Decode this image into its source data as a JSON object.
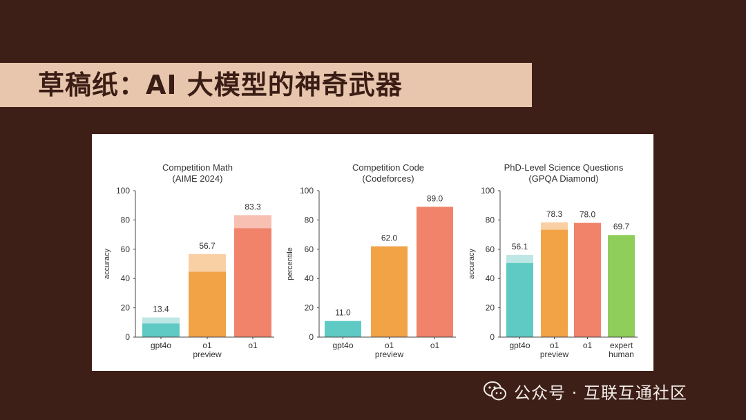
{
  "slide": {
    "title": "草稿纸：AI 大模型的神奇武器"
  },
  "watermark": {
    "icon": "wechat-icon",
    "text": "公众号 · 互联互通社区"
  },
  "colors": {
    "background": "#3d1f17",
    "title_band": "#e8c6ae"
  },
  "chart_data": [
    {
      "type": "bar",
      "title": "Competition Math\n(AIME 2024)",
      "ylabel": "accuracy",
      "ylim": [
        0,
        100
      ],
      "yticks": [
        0,
        20,
        40,
        60,
        80,
        100
      ],
      "categories": [
        "gpt4o",
        "o1\npreview",
        "o1"
      ],
      "values": [
        13.4,
        56.7,
        83.3
      ],
      "base_values": [
        9.3,
        44.6,
        74.4
      ],
      "value_labels": [
        "13.4",
        "56.7",
        "83.3"
      ],
      "colors": [
        "#5fcac3",
        "#f2a346",
        "#f1836b"
      ],
      "highlight_colors": [
        "#bde7e4",
        "#f8d0a3",
        "#f7c0b3"
      ]
    },
    {
      "type": "bar",
      "title": "Competition Code\n(Codeforces)",
      "ylabel": "percentile",
      "ylim": [
        0,
        100
      ],
      "yticks": [
        0,
        20,
        40,
        60,
        80,
        100
      ],
      "categories": [
        "gpt4o",
        "o1\npreview",
        "o1"
      ],
      "values": [
        11.0,
        62.0,
        89.0
      ],
      "base_values": [
        11.0,
        62.0,
        89.0
      ],
      "value_labels": [
        "11.0",
        "62.0",
        "89.0"
      ],
      "colors": [
        "#5fcac3",
        "#f2a346",
        "#f1836b"
      ],
      "highlight_colors": [
        "#bde7e4",
        "#f8d0a3",
        "#f7c0b3"
      ]
    },
    {
      "type": "bar",
      "title": "PhD-Level Science Questions\n(GPQA Diamond)",
      "ylabel": "accuracy",
      "ylim": [
        0,
        100
      ],
      "yticks": [
        0,
        20,
        40,
        60,
        80,
        100
      ],
      "categories": [
        "gpt4o",
        "o1\npreview",
        "o1",
        "expert\nhuman"
      ],
      "values": [
        56.1,
        78.3,
        78.0,
        69.7
      ],
      "base_values": [
        50.6,
        73.3,
        78.0,
        69.7
      ],
      "value_labels": [
        "56.1",
        "78.3",
        "78.0",
        "69.7"
      ],
      "colors": [
        "#5fcac3",
        "#f2a346",
        "#f1836b",
        "#8fce5a"
      ],
      "highlight_colors": [
        "#bde7e4",
        "#f8d0a3",
        "#f7c0b3",
        "#c8e8ab"
      ]
    }
  ]
}
